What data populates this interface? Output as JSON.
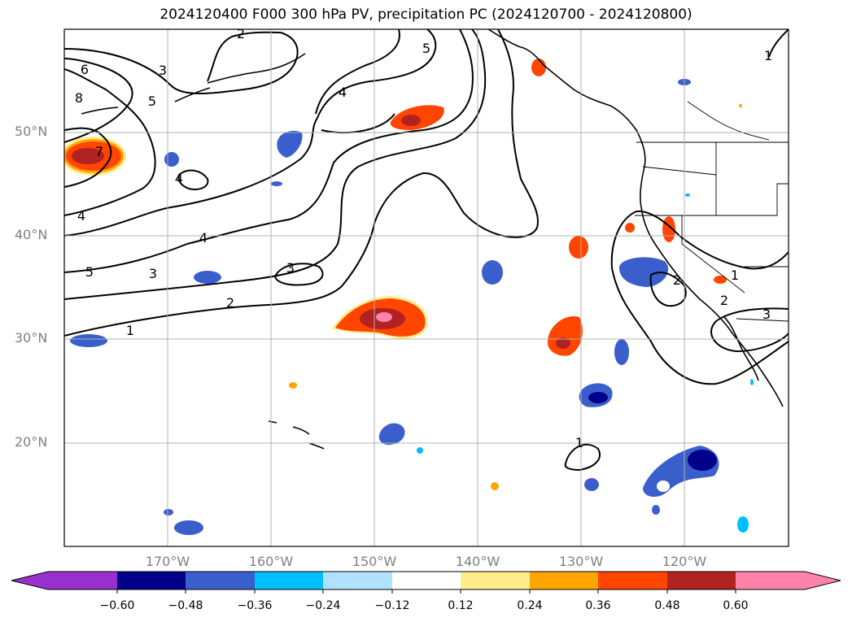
{
  "title": "2024120400 F000 300 hPa PV, precipitation PC (2024120700 - 2024120800)",
  "map": {
    "region": "North Pacific and western North America",
    "extent": {
      "lon": [
        -180,
        -110
      ],
      "lat": [
        10,
        60
      ]
    },
    "lat_labels": [
      "50°N",
      "40°N",
      "30°N",
      "20°N"
    ],
    "lon_labels": [
      "170°W",
      "160°W",
      "150°W",
      "140°W",
      "130°W",
      "120°W"
    ],
    "gridlines": true,
    "coastlines": true,
    "state_borders": true
  },
  "pv_contours": {
    "variable": "300 hPa PV",
    "labels": [
      "1",
      "2",
      "3",
      "4",
      "5",
      "6",
      "7",
      "8"
    ]
  },
  "colorbar": {
    "variable": "precipitation PC",
    "ticks": [
      "−0.60",
      "−0.48",
      "−0.36",
      "−0.24",
      "−0.12",
      "0.12",
      "0.24",
      "0.36",
      "0.48",
      "0.60"
    ],
    "colors": [
      "#9932CC",
      "#00008B",
      "#3A5FCD",
      "#00BFFF",
      "#B0E2FF",
      "#FFFFFF",
      "#FFEC8B",
      "#FFA500",
      "#FF4500",
      "#B22222",
      "#FF82AB"
    ],
    "extend": "both"
  }
}
